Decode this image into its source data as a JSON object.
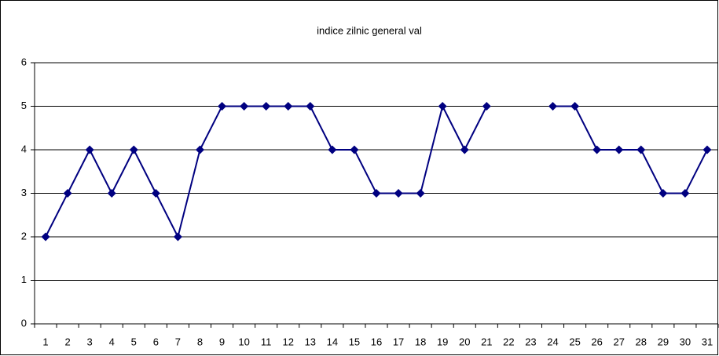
{
  "chart_data": {
    "type": "line",
    "title": "indice zilnic general val",
    "categories": [
      "1",
      "2",
      "3",
      "4",
      "5",
      "6",
      "7",
      "8",
      "9",
      "10",
      "11",
      "12",
      "13",
      "14",
      "15",
      "16",
      "17",
      "18",
      "19",
      "20",
      "21",
      "22",
      "23",
      "24",
      "25",
      "26",
      "27",
      "28",
      "29",
      "30",
      "31"
    ],
    "values": [
      2,
      3,
      4,
      3,
      4,
      3,
      2,
      4,
      5,
      5,
      5,
      5,
      5,
      4,
      4,
      3,
      3,
      3,
      5,
      4,
      5,
      null,
      null,
      5,
      5,
      4,
      4,
      4,
      3,
      3,
      4
    ],
    "color": "#000080",
    "ylim": [
      0,
      6
    ],
    "yticks": [
      0,
      1,
      2,
      3,
      4,
      5,
      6
    ],
    "grid": true
  }
}
